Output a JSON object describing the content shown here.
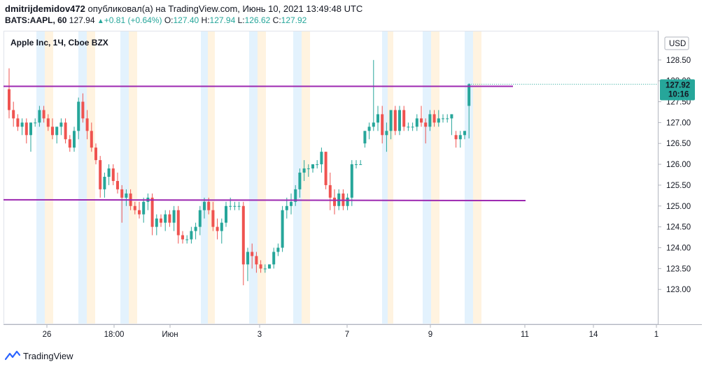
{
  "header": {
    "publisher_line": "dmitrijdemidov472 опубликовал(а) на TradingView.com, Июнь 10, 2021 13:49:48 UTC",
    "user": "dmitrijdemidov472",
    "published_text": "опубликовал(а) на TradingView.com, Июнь 10, 2021 13:49:48 UTC",
    "symbol": "BATS:AAPL, 60",
    "last": "127.94",
    "change": "+0.81 (+0.64%)",
    "o_label": "O:",
    "o_value": "127.40",
    "h_label": "H:",
    "h_value": "127.94",
    "l_label": "L:",
    "l_value": "126.62",
    "c_label": "C:",
    "c_value": "127.92"
  },
  "chart_data": {
    "type": "candlestick",
    "title": "Apple Inc, 1Ч, Cboe BZX",
    "currency": "USD",
    "price_label": "127.92",
    "countdown_label": "10:16",
    "ylim": [
      122.5,
      129.0
    ],
    "y_ticks": [
      "128.50",
      "128.00",
      "127.50",
      "127.00",
      "126.50",
      "126.00",
      "125.50",
      "125.00",
      "124.50",
      "124.00",
      "123.50",
      "123.00"
    ],
    "x_ticks": [
      "26",
      "18:00",
      "Июн",
      "3",
      "7",
      "9",
      "11",
      "14",
      "1"
    ],
    "horizontal_lines": [
      {
        "color": "#9c27b0",
        "y_start": 127.87,
        "y_end": 127.87
      },
      {
        "color": "#9c27b0",
        "y_start": 125.15,
        "y_end": 125.13
      }
    ],
    "colors": {
      "up": "#26a69a",
      "down": "#ef5350",
      "line": "#9c27b0",
      "premarket": "#e3f2fd",
      "postmarket": "#fff3e0"
    },
    "candles": [
      {
        "o": 127.8,
        "h": 128.3,
        "l": 127.1,
        "c": 127.3
      },
      {
        "o": 127.3,
        "h": 127.5,
        "l": 126.9,
        "c": 127.1
      },
      {
        "o": 127.1,
        "h": 127.2,
        "l": 126.8,
        "c": 126.9
      },
      {
        "o": 126.9,
        "h": 127.1,
        "l": 126.7,
        "c": 127.0
      },
      {
        "o": 127.0,
        "h": 127.1,
        "l": 126.5,
        "c": 126.7
      },
      {
        "o": 126.7,
        "h": 127.0,
        "l": 126.3,
        "c": 127.0
      },
      {
        "o": 127.0,
        "h": 127.1,
        "l": 126.9,
        "c": 127.0
      },
      {
        "o": 127.0,
        "h": 127.4,
        "l": 126.9,
        "c": 127.3
      },
      {
        "o": 127.3,
        "h": 127.4,
        "l": 127.0,
        "c": 127.1
      },
      {
        "o": 127.1,
        "h": 127.2,
        "l": 126.8,
        "c": 126.9
      },
      {
        "o": 126.9,
        "h": 127.1,
        "l": 126.6,
        "c": 126.7
      },
      {
        "o": 126.7,
        "h": 126.9,
        "l": 126.5,
        "c": 126.9
      },
      {
        "o": 126.9,
        "h": 127.1,
        "l": 126.7,
        "c": 127.0
      },
      {
        "o": 127.0,
        "h": 127.1,
        "l": 126.5,
        "c": 126.6
      },
      {
        "o": 126.6,
        "h": 126.7,
        "l": 126.3,
        "c": 126.4
      },
      {
        "o": 126.4,
        "h": 126.9,
        "l": 126.3,
        "c": 126.8
      },
      {
        "o": 126.8,
        "h": 127.6,
        "l": 126.6,
        "c": 127.5
      },
      {
        "o": 127.5,
        "h": 127.7,
        "l": 127.0,
        "c": 127.1
      },
      {
        "o": 127.1,
        "h": 127.3,
        "l": 126.6,
        "c": 126.8
      },
      {
        "o": 126.8,
        "h": 127.0,
        "l": 126.3,
        "c": 126.4
      },
      {
        "o": 126.4,
        "h": 126.5,
        "l": 126.0,
        "c": 126.1
      },
      {
        "o": 126.1,
        "h": 126.2,
        "l": 125.2,
        "c": 125.4
      },
      {
        "o": 125.4,
        "h": 125.8,
        "l": 125.2,
        "c": 125.7
      },
      {
        "o": 125.7,
        "h": 126.0,
        "l": 125.5,
        "c": 125.9
      },
      {
        "o": 125.9,
        "h": 126.0,
        "l": 125.5,
        "c": 125.6
      },
      {
        "o": 125.6,
        "h": 125.8,
        "l": 125.3,
        "c": 125.4
      },
      {
        "o": 125.4,
        "h": 125.5,
        "l": 124.6,
        "c": 125.2
      },
      {
        "o": 125.2,
        "h": 125.4,
        "l": 125.0,
        "c": 125.3
      },
      {
        "o": 125.3,
        "h": 125.4,
        "l": 124.9,
        "c": 125.0
      },
      {
        "o": 125.0,
        "h": 125.1,
        "l": 124.8,
        "c": 124.9
      },
      {
        "o": 124.9,
        "h": 125.1,
        "l": 124.7,
        "c": 124.8
      },
      {
        "o": 124.8,
        "h": 125.2,
        "l": 124.6,
        "c": 125.1
      },
      {
        "o": 125.1,
        "h": 125.3,
        "l": 124.9,
        "c": 125.2
      },
      {
        "o": 125.2,
        "h": 125.3,
        "l": 124.3,
        "c": 124.5
      },
      {
        "o": 124.5,
        "h": 124.8,
        "l": 124.3,
        "c": 124.7
      },
      {
        "o": 124.7,
        "h": 124.8,
        "l": 124.5,
        "c": 124.6
      },
      {
        "o": 124.6,
        "h": 124.9,
        "l": 124.4,
        "c": 124.8
      },
      {
        "o": 124.8,
        "h": 124.9,
        "l": 124.5,
        "c": 124.6
      },
      {
        "o": 124.6,
        "h": 125.0,
        "l": 124.4,
        "c": 124.9
      },
      {
        "o": 124.9,
        "h": 125.0,
        "l": 124.1,
        "c": 124.3
      },
      {
        "o": 124.3,
        "h": 124.4,
        "l": 124.1,
        "c": 124.2
      },
      {
        "o": 124.2,
        "h": 124.3,
        "l": 124.1,
        "c": 124.2
      },
      {
        "o": 124.2,
        "h": 124.5,
        "l": 124.1,
        "c": 124.4
      },
      {
        "o": 124.4,
        "h": 124.6,
        "l": 124.2,
        "c": 124.5
      },
      {
        "o": 124.5,
        "h": 125.0,
        "l": 124.3,
        "c": 124.9
      },
      {
        "o": 124.9,
        "h": 125.2,
        "l": 124.7,
        "c": 125.1
      },
      {
        "o": 125.1,
        "h": 125.2,
        "l": 124.8,
        "c": 124.9
      },
      {
        "o": 124.9,
        "h": 125.1,
        "l": 124.4,
        "c": 124.5
      },
      {
        "o": 124.5,
        "h": 124.7,
        "l": 124.2,
        "c": 124.4
      },
      {
        "o": 124.4,
        "h": 124.7,
        "l": 124.1,
        "c": 124.6
      },
      {
        "o": 124.6,
        "h": 125.1,
        "l": 124.5,
        "c": 125.0
      },
      {
        "o": 125.0,
        "h": 125.2,
        "l": 124.9,
        "c": 125.0
      },
      {
        "o": 125.0,
        "h": 125.1,
        "l": 124.9,
        "c": 125.0
      },
      {
        "o": 125.0,
        "h": 125.1,
        "l": 124.9,
        "c": 125.0
      },
      {
        "o": 125.0,
        "h": 125.1,
        "l": 123.1,
        "c": 123.6
      },
      {
        "o": 123.6,
        "h": 124.0,
        "l": 123.2,
        "c": 123.9
      },
      {
        "o": 123.9,
        "h": 124.1,
        "l": 123.5,
        "c": 123.8
      },
      {
        "o": 123.8,
        "h": 123.9,
        "l": 123.4,
        "c": 123.6
      },
      {
        "o": 123.6,
        "h": 123.7,
        "l": 123.4,
        "c": 123.5
      },
      {
        "o": 123.5,
        "h": 123.6,
        "l": 123.4,
        "c": 123.5
      },
      {
        "o": 123.5,
        "h": 123.6,
        "l": 123.5,
        "c": 123.6
      },
      {
        "o": 123.6,
        "h": 124.0,
        "l": 123.5,
        "c": 123.9
      },
      {
        "o": 123.9,
        "h": 124.1,
        "l": 123.8,
        "c": 124.0
      },
      {
        "o": 124.0,
        "h": 125.0,
        "l": 123.9,
        "c": 124.9
      },
      {
        "o": 124.9,
        "h": 125.2,
        "l": 124.7,
        "c": 125.0
      },
      {
        "o": 125.0,
        "h": 125.3,
        "l": 124.8,
        "c": 125.1
      },
      {
        "o": 125.1,
        "h": 125.5,
        "l": 125.0,
        "c": 125.4
      },
      {
        "o": 125.4,
        "h": 125.9,
        "l": 125.2,
        "c": 125.8
      },
      {
        "o": 125.8,
        "h": 126.1,
        "l": 125.6,
        "c": 125.9
      },
      {
        "o": 125.9,
        "h": 126.0,
        "l": 125.7,
        "c": 125.9
      },
      {
        "o": 125.9,
        "h": 126.0,
        "l": 125.8,
        "c": 126.0
      },
      {
        "o": 126.0,
        "h": 126.1,
        "l": 125.9,
        "c": 126.0
      },
      {
        "o": 126.0,
        "h": 126.4,
        "l": 125.8,
        "c": 126.3
      },
      {
        "o": 126.3,
        "h": 126.3,
        "l": 125.4,
        "c": 125.5
      },
      {
        "o": 125.5,
        "h": 125.8,
        "l": 124.9,
        "c": 125.2
      },
      {
        "o": 125.2,
        "h": 125.4,
        "l": 124.8,
        "c": 125.0
      },
      {
        "o": 125.0,
        "h": 125.4,
        "l": 124.9,
        "c": 125.3
      },
      {
        "o": 125.3,
        "h": 125.4,
        "l": 124.9,
        "c": 125.0
      },
      {
        "o": 125.0,
        "h": 125.3,
        "l": 124.9,
        "c": 125.2
      },
      {
        "o": 125.2,
        "h": 126.1,
        "l": 125.0,
        "c": 126.0
      },
      {
        "o": 126.0,
        "h": 126.1,
        "l": 125.9,
        "c": 126.0
      },
      {
        "o": 126.0,
        "h": 126.1,
        "l": 126.0,
        "c": 126.0
      },
      {
        "o": 126.5,
        "h": 126.8,
        "l": 126.4,
        "c": 126.8
      },
      {
        "o": 126.8,
        "h": 127.0,
        "l": 126.6,
        "c": 126.9
      },
      {
        "o": 126.9,
        "h": 128.5,
        "l": 126.8,
        "c": 127.0
      },
      {
        "o": 127.0,
        "h": 127.4,
        "l": 126.8,
        "c": 127.2
      },
      {
        "o": 127.2,
        "h": 127.4,
        "l": 126.5,
        "c": 126.7
      },
      {
        "o": 126.7,
        "h": 127.0,
        "l": 126.3,
        "c": 126.8
      },
      {
        "o": 126.8,
        "h": 127.3,
        "l": 126.6,
        "c": 127.3
      },
      {
        "o": 127.3,
        "h": 127.4,
        "l": 126.7,
        "c": 126.8
      },
      {
        "o": 126.8,
        "h": 127.4,
        "l": 126.7,
        "c": 127.3
      },
      {
        "o": 127.3,
        "h": 127.4,
        "l": 126.8,
        "c": 126.9
      },
      {
        "o": 126.9,
        "h": 127.0,
        "l": 126.8,
        "c": 126.9
      },
      {
        "o": 126.9,
        "h": 127.0,
        "l": 126.8,
        "c": 126.9
      },
      {
        "o": 126.9,
        "h": 127.2,
        "l": 126.8,
        "c": 127.1
      },
      {
        "o": 127.1,
        "h": 127.4,
        "l": 126.9,
        "c": 127.0
      },
      {
        "o": 127.0,
        "h": 127.1,
        "l": 126.5,
        "c": 126.9
      },
      {
        "o": 126.9,
        "h": 127.3,
        "l": 126.8,
        "c": 127.2
      },
      {
        "o": 127.2,
        "h": 127.3,
        "l": 126.9,
        "c": 127.0
      },
      {
        "o": 127.0,
        "h": 127.3,
        "l": 126.9,
        "c": 127.1
      },
      {
        "o": 127.1,
        "h": 127.2,
        "l": 127.0,
        "c": 127.1
      },
      {
        "o": 127.1,
        "h": 127.2,
        "l": 127.0,
        "c": 127.1
      },
      {
        "o": 127.1,
        "h": 127.2,
        "l": 126.7,
        "c": 127.2
      },
      {
        "o": 126.7,
        "h": 126.8,
        "l": 126.4,
        "c": 126.6
      },
      {
        "o": 126.6,
        "h": 126.8,
        "l": 126.4,
        "c": 126.7
      },
      {
        "o": 126.7,
        "h": 126.8,
        "l": 126.6,
        "c": 126.8
      },
      {
        "o": 127.4,
        "h": 127.94,
        "l": 126.62,
        "c": 127.92
      }
    ]
  },
  "footer": {
    "brand": "TradingView"
  }
}
